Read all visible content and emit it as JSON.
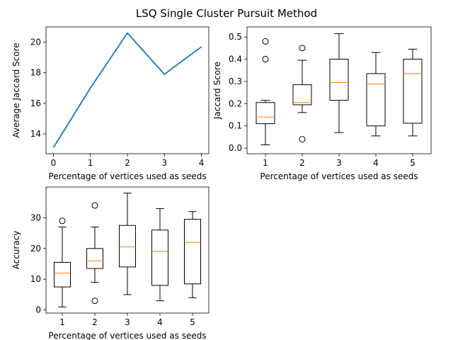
{
  "figure": {
    "suptitle": "LSQ Single Cluster Pursuit Method"
  },
  "chart_data": [
    {
      "type": "line",
      "xlabel": "Percentage of vertices used as seeds",
      "ylabel": "Average Jaccard Score",
      "x": [
        0,
        1,
        2,
        3,
        4
      ],
      "y": [
        13.1,
        17.0,
        20.6,
        17.9,
        19.7
      ],
      "xlim": [
        -0.2,
        4.2
      ],
      "ylim": [
        12.7,
        21.0
      ],
      "xticks": [
        0,
        1,
        2,
        3,
        4
      ],
      "yticks": [
        14,
        16,
        18,
        20
      ],
      "color": "#1f77b4",
      "grid": false
    },
    {
      "type": "box",
      "xlabel": "Percentage of vertices used as seeds",
      "ylabel": "Jaccard Score",
      "ylim": [
        -0.025,
        0.545
      ],
      "yticks": [
        0.0,
        0.1,
        0.2,
        0.3,
        0.4,
        0.5
      ],
      "ytick_labels": [
        "0.0",
        "0.1",
        "0.2",
        "0.3",
        "0.4",
        "0.5"
      ],
      "median_color": "#ff7f0e",
      "grid": false,
      "boxes": [
        {
          "label": "1",
          "whislo": 0.015,
          "q1": 0.11,
          "med": 0.14,
          "q3": 0.205,
          "whishi": 0.215,
          "fliers": [
            0.4,
            0.48
          ]
        },
        {
          "label": "2",
          "whislo": 0.16,
          "q1": 0.195,
          "med": 0.205,
          "q3": 0.285,
          "whishi": 0.395,
          "fliers": [
            0.04,
            0.45
          ]
        },
        {
          "label": "3",
          "whislo": 0.07,
          "q1": 0.215,
          "med": 0.295,
          "q3": 0.4,
          "whishi": 0.515,
          "fliers": []
        },
        {
          "label": "4",
          "whislo": 0.055,
          "q1": 0.1,
          "med": 0.288,
          "q3": 0.335,
          "whishi": 0.43,
          "fliers": []
        },
        {
          "label": "5",
          "whislo": 0.055,
          "q1": 0.112,
          "med": 0.335,
          "q3": 0.4,
          "whishi": 0.445,
          "fliers": []
        }
      ]
    },
    {
      "type": "box",
      "xlabel": "Percentage of vertices used as seeds",
      "ylabel": "Accuracy",
      "ylim": [
        -1,
        40
      ],
      "yticks": [
        0,
        10,
        20,
        30
      ],
      "ytick_labels": [
        "0",
        "10",
        "20",
        "30"
      ],
      "median_color": "#ff7f0e",
      "grid": false,
      "boxes": [
        {
          "label": "1",
          "whislo": 1,
          "q1": 7.5,
          "med": 12,
          "q3": 15.5,
          "whishi": 27,
          "fliers": [
            29
          ]
        },
        {
          "label": "2",
          "whislo": 9,
          "q1": 13.5,
          "med": 16,
          "q3": 20,
          "whishi": 27,
          "fliers": [
            3,
            34
          ]
        },
        {
          "label": "3",
          "whislo": 5,
          "q1": 14,
          "med": 20.5,
          "q3": 27.5,
          "whishi": 38,
          "fliers": []
        },
        {
          "label": "4",
          "whislo": 3,
          "q1": 8,
          "med": 19,
          "q3": 26,
          "whishi": 33,
          "fliers": []
        },
        {
          "label": "5",
          "whislo": 4,
          "q1": 8.5,
          "med": 22,
          "q3": 29.5,
          "whishi": 32,
          "fliers": []
        }
      ]
    }
  ]
}
